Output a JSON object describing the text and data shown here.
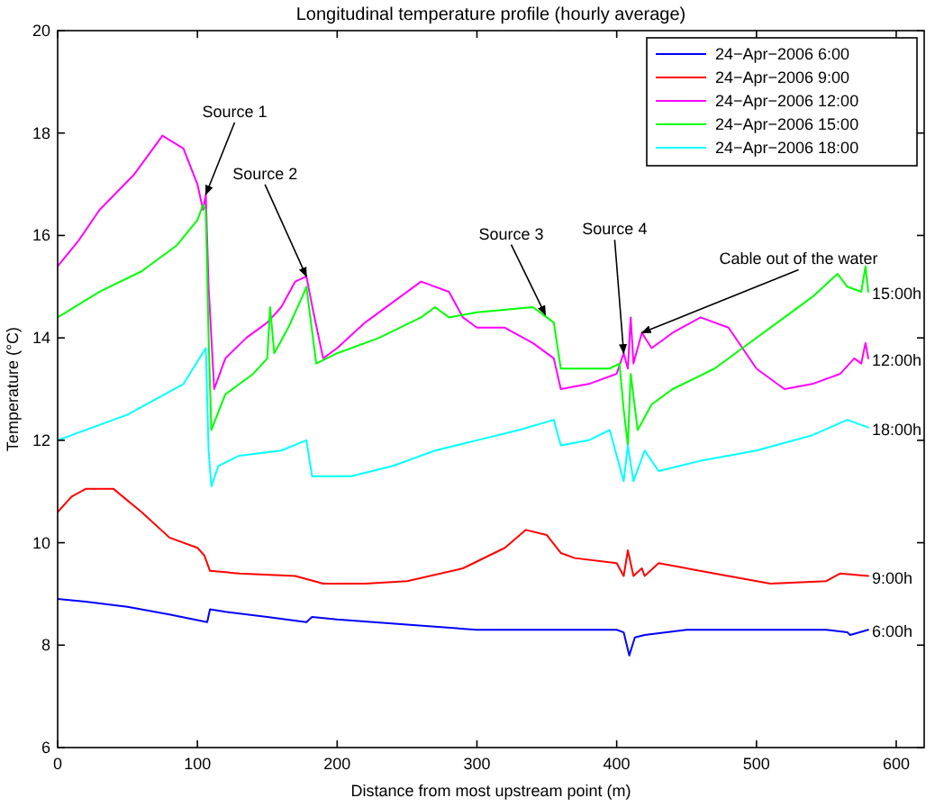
{
  "chart_data": {
    "type": "line",
    "title": "Longitudinal temperature profile (hourly average)",
    "xlabel": "Distance from most upstream point (m)",
    "ylabel": "Temperature (°C)",
    "xlim": [
      0,
      620
    ],
    "xticks": [
      0,
      100,
      200,
      300,
      400,
      500,
      600
    ],
    "ylim": [
      6,
      20
    ],
    "yticks": [
      6,
      8,
      10,
      12,
      14,
      16,
      18,
      20
    ],
    "grid": false,
    "legend": "top right",
    "line_style": "solid",
    "marker": "none",
    "series": [
      {
        "name": "24−Apr−2006 6:00",
        "color": "#0000ff",
        "x": [
          0,
          20,
          50,
          80,
          107,
          109,
          120,
          150,
          178,
          182,
          200,
          250,
          300,
          350,
          400,
          405,
          409,
          413,
          420,
          450,
          500,
          550,
          565,
          567,
          580
        ],
        "values": [
          8.9,
          8.85,
          8.75,
          8.6,
          8.45,
          8.7,
          8.65,
          8.55,
          8.45,
          8.55,
          8.5,
          8.4,
          8.3,
          8.3,
          8.3,
          8.25,
          7.8,
          8.15,
          8.2,
          8.3,
          8.3,
          8.3,
          8.25,
          8.2,
          8.3
        ]
      },
      {
        "name": "24−Apr−2006 9:00",
        "color": "#ff0000",
        "x": [
          0,
          10,
          20,
          40,
          60,
          80,
          100,
          105,
          109,
          130,
          170,
          190,
          220,
          250,
          290,
          320,
          335,
          350,
          360,
          370,
          400,
          405,
          408,
          412,
          418,
          420,
          430,
          470,
          510,
          550,
          560,
          580
        ],
        "values": [
          10.6,
          10.9,
          11.05,
          11.05,
          10.6,
          10.1,
          9.9,
          9.75,
          9.45,
          9.4,
          9.35,
          9.2,
          9.2,
          9.25,
          9.5,
          9.9,
          10.25,
          10.15,
          9.8,
          9.7,
          9.6,
          9.35,
          9.85,
          9.35,
          9.5,
          9.35,
          9.6,
          9.4,
          9.2,
          9.25,
          9.4,
          9.35
        ]
      },
      {
        "name": "24−Apr−2006 12:00",
        "color": "#ff00ff",
        "x": [
          0,
          15,
          30,
          55,
          75,
          90,
          100,
          104,
          106,
          108,
          112,
          120,
          135,
          150,
          160,
          170,
          178,
          183,
          190,
          200,
          220,
          240,
          260,
          280,
          290,
          300,
          320,
          340,
          355,
          360,
          380,
          400,
          405,
          408,
          410,
          412,
          418,
          425,
          440,
          460,
          480,
          500,
          520,
          540,
          560,
          570,
          575,
          578,
          580
        ],
        "values": [
          15.4,
          15.9,
          16.5,
          17.2,
          17.95,
          17.7,
          17.0,
          16.5,
          16.8,
          15.0,
          13.0,
          13.6,
          14.0,
          14.3,
          14.6,
          15.1,
          15.2,
          14.5,
          13.6,
          13.8,
          14.3,
          14.7,
          15.1,
          14.9,
          14.4,
          14.2,
          14.2,
          13.9,
          13.6,
          13.0,
          13.1,
          13.3,
          13.7,
          13.4,
          14.4,
          13.5,
          14.1,
          13.8,
          14.1,
          14.4,
          14.2,
          13.4,
          13.0,
          13.1,
          13.3,
          13.6,
          13.5,
          13.9,
          13.6
        ]
      },
      {
        "name": "24−Apr−2006 15:00",
        "color": "#00ff00",
        "x": [
          0,
          30,
          60,
          85,
          100,
          104,
          106,
          108,
          110,
          120,
          140,
          150,
          152,
          155,
          165,
          175,
          178,
          185,
          200,
          230,
          260,
          270,
          280,
          300,
          340,
          355,
          360,
          395,
          402,
          405,
          408,
          410,
          415,
          425,
          440,
          470,
          490,
          520,
          540,
          558,
          565,
          575,
          578,
          580
        ],
        "values": [
          14.4,
          14.9,
          15.3,
          15.8,
          16.3,
          16.6,
          16.5,
          14.0,
          12.2,
          12.9,
          13.3,
          13.6,
          14.6,
          13.7,
          14.2,
          14.8,
          15.0,
          13.5,
          13.7,
          14.0,
          14.4,
          14.6,
          14.4,
          14.5,
          14.6,
          14.3,
          13.4,
          13.4,
          13.5,
          12.6,
          11.9,
          13.3,
          12.2,
          12.7,
          13.0,
          13.4,
          13.8,
          14.4,
          14.8,
          15.25,
          15.0,
          14.9,
          15.4,
          14.9
        ]
      },
      {
        "name": "24−Apr−2006 18:00",
        "color": "#00ffff",
        "x": [
          0,
          50,
          90,
          106,
          108,
          110,
          115,
          130,
          160,
          178,
          182,
          210,
          240,
          270,
          300,
          330,
          355,
          360,
          380,
          395,
          400,
          405,
          408,
          412,
          420,
          430,
          460,
          500,
          540,
          565,
          580
        ],
        "values": [
          12.0,
          12.5,
          13.1,
          13.8,
          11.8,
          11.1,
          11.5,
          11.7,
          11.8,
          12.0,
          11.3,
          11.3,
          11.5,
          11.8,
          12.0,
          12.2,
          12.4,
          11.9,
          12.0,
          12.2,
          11.7,
          11.2,
          11.9,
          11.2,
          11.8,
          11.4,
          11.6,
          11.8,
          12.1,
          12.4,
          12.25
        ]
      }
    ],
    "annotations": [
      {
        "text": "Source 1",
        "x": 106,
        "y": 16.8
      },
      {
        "text": "Source 2",
        "x": 178,
        "y": 15.2
      },
      {
        "text": "Source 3",
        "x": 349,
        "y": 14.45
      },
      {
        "text": "Source 4",
        "x": 405,
        "y": 13.7
      },
      {
        "text": "Cable out of the water",
        "x": 418,
        "y": 14.1
      },
      {
        "text": "15:00h",
        "x": 580,
        "y": 14.9
      },
      {
        "text": "12:00h",
        "x": 580,
        "y": 13.6
      },
      {
        "text": "18:00h",
        "x": 580,
        "y": 12.25
      },
      {
        "text": "9:00h",
        "x": 580,
        "y": 9.35
      },
      {
        "text": "6:00h",
        "x": 580,
        "y": 8.3
      }
    ]
  }
}
